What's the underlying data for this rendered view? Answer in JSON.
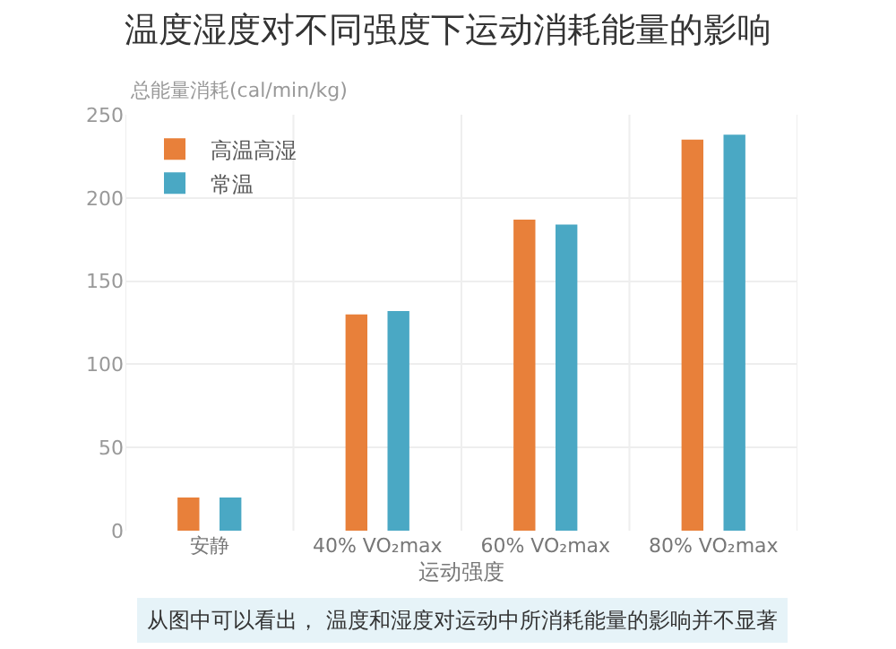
{
  "chart_data": {
    "type": "bar",
    "title": "温度湿度对不同强度下运动消耗能量的影响",
    "ylabel": "总能量消耗(cal/min/kg)",
    "xlabel": "运动强度",
    "categories": [
      "安静",
      "40% VO₂max",
      "60% VO₂max",
      "80% VO₂max"
    ],
    "series": [
      {
        "name": "高温高湿",
        "color": "#e8803a",
        "values": [
          20,
          130,
          187,
          235
        ]
      },
      {
        "name": "常温",
        "color": "#4aa8c4",
        "values": [
          20,
          132,
          184,
          238
        ]
      }
    ],
    "ylim": [
      0,
      250
    ],
    "yticks": [
      0,
      50,
      100,
      150,
      200,
      250
    ],
    "grid": true,
    "legend": "top left",
    "annotations": [
      "从图中可以看出， 温度和湿度对运动中所消耗能量的影响并不显著"
    ]
  }
}
